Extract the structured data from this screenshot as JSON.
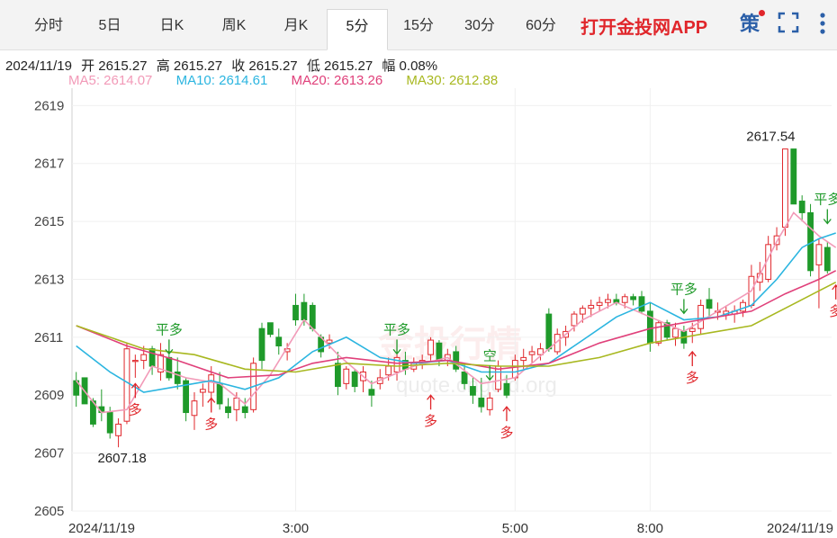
{
  "tabs": [
    {
      "label": "分时",
      "active": false
    },
    {
      "label": "5日",
      "active": false
    },
    {
      "label": "日K",
      "active": false
    },
    {
      "label": "周K",
      "active": false
    },
    {
      "label": "月K",
      "active": false
    },
    {
      "label": "5分",
      "active": true
    },
    {
      "label": "15分",
      "active": false
    },
    {
      "label": "30分",
      "active": false
    },
    {
      "label": "60分",
      "active": false
    }
  ],
  "app_link": "打开金投网APP",
  "tools": {
    "strategy_icon_label": "策",
    "fullscreen_icon": "fullscreen-icon",
    "more_icon": "more-icon"
  },
  "info": {
    "date": "2024/11/19",
    "open": "开 2615.27",
    "high": "高 2615.27",
    "close": "收 2615.27",
    "low": "低 2615.27",
    "range": "幅 0.08%"
  },
  "ma": [
    {
      "label": "MA5: 2614.07",
      "color": "#f29ab8"
    },
    {
      "label": "MA10: 2614.61",
      "color": "#2bb5e0"
    },
    {
      "label": "MA20: 2613.26",
      "color": "#e0407a"
    },
    {
      "label": "MA30: 2612.88",
      "color": "#a8b820"
    }
  ],
  "watermark": "金投行情",
  "watermark_url": "quote.cngold.org",
  "chart_data": {
    "type": "candlestick",
    "ylim": [
      2605,
      2619.6
    ],
    "y_ticks": [
      "2619",
      "2617",
      "2615",
      "2613",
      "2611",
      "2609",
      "2607",
      "2605"
    ],
    "x_ticks": [
      {
        "label": "2024/11/19",
        "index": 0
      },
      {
        "label": "3:00",
        "index": 26
      },
      {
        "label": "5:00",
        "index": 52
      },
      {
        "label": "8:00",
        "index": 68
      },
      {
        "label": "2024/11/19",
        "index": 82
      }
    ],
    "up_color": "#e0262b",
    "down_color": "#1f9a2a",
    "candles": [
      [
        2609.5,
        2609.8,
        2608.6,
        2609.0
      ],
      [
        2609.6,
        2609.6,
        2608.7,
        2608.7
      ],
      [
        2608.8,
        2608.9,
        2607.9,
        2608.0
      ],
      [
        2608.6,
        2609.2,
        2608.1,
        2608.4
      ],
      [
        2608.4,
        2608.6,
        2607.5,
        2607.7
      ],
      [
        2607.6,
        2608.2,
        2607.2,
        2608.0
      ],
      [
        2608.1,
        2610.8,
        2608.0,
        2610.6
      ],
      [
        2610.2,
        2610.4,
        2609.6,
        2610.2
      ],
      [
        2610.2,
        2610.7,
        2609.9,
        2610.4
      ],
      [
        2610.6,
        2610.7,
        2609.7,
        2610.0
      ],
      [
        2609.8,
        2610.8,
        2609.5,
        2610.4
      ],
      [
        2610.3,
        2610.4,
        2609.5,
        2609.6
      ],
      [
        2609.8,
        2610.3,
        2609.2,
        2609.4
      ],
      [
        2609.5,
        2609.6,
        2608.1,
        2608.4
      ],
      [
        2608.3,
        2609.1,
        2607.8,
        2608.8
      ],
      [
        2609.1,
        2609.4,
        2608.6,
        2609.2
      ],
      [
        2609.1,
        2610.0,
        2608.9,
        2609.7
      ],
      [
        2609.4,
        2609.8,
        2608.5,
        2608.7
      ],
      [
        2608.6,
        2608.9,
        2608.2,
        2608.4
      ],
      [
        2608.5,
        2609.1,
        2608.1,
        2608.9
      ],
      [
        2608.6,
        2608.9,
        2608.2,
        2608.4
      ],
      [
        2608.5,
        2610.3,
        2608.4,
        2610.1
      ],
      [
        2611.3,
        2611.5,
        2609.9,
        2610.2
      ],
      [
        2611.5,
        2611.5,
        2611.0,
        2611.1
      ],
      [
        2611.0,
        2611.3,
        2610.4,
        2610.7
      ],
      [
        2610.5,
        2610.8,
        2610.2,
        2610.6
      ],
      [
        2612.1,
        2612.5,
        2611.4,
        2611.6
      ],
      [
        2612.2,
        2612.5,
        2611.4,
        2611.6
      ],
      [
        2612.1,
        2612.2,
        2611.2,
        2611.3
      ],
      [
        2611.0,
        2611.1,
        2610.3,
        2610.5
      ],
      [
        2610.8,
        2611.1,
        2610.6,
        2610.9
      ],
      [
        2610.1,
        2610.5,
        2609.0,
        2609.3
      ],
      [
        2609.4,
        2610.0,
        2609.2,
        2609.9
      ],
      [
        2609.8,
        2609.9,
        2609.1,
        2609.3
      ],
      [
        2609.5,
        2610.0,
        2609.1,
        2609.8
      ],
      [
        2609.2,
        2609.5,
        2608.6,
        2609.0
      ],
      [
        2609.4,
        2609.9,
        2609.2,
        2609.6
      ],
      [
        2609.7,
        2610.3,
        2609.5,
        2610.0
      ],
      [
        2609.8,
        2610.4,
        2609.5,
        2610.3
      ],
      [
        2610.2,
        2610.5,
        2609.7,
        2609.9
      ],
      [
        2609.9,
        2610.3,
        2609.8,
        2610.1
      ],
      [
        2610.1,
        2610.4,
        2609.9,
        2610.2
      ],
      [
        2610.4,
        2611.0,
        2610.2,
        2610.9
      ],
      [
        2610.8,
        2610.9,
        2610.0,
        2610.2
      ],
      [
        2610.2,
        2610.6,
        2610.0,
        2610.4
      ],
      [
        2610.5,
        2610.7,
        2609.8,
        2609.9
      ],
      [
        2609.8,
        2610.1,
        2609.2,
        2609.4
      ],
      [
        2609.3,
        2609.6,
        2608.7,
        2609.0
      ],
      [
        2608.9,
        2609.6,
        2608.4,
        2608.6
      ],
      [
        2608.5,
        2609.1,
        2608.3,
        2608.9
      ],
      [
        2609.2,
        2610.2,
        2609.1,
        2610.0
      ],
      [
        2609.4,
        2609.7,
        2608.9,
        2609.0
      ],
      [
        2609.6,
        2610.4,
        2609.5,
        2610.2
      ],
      [
        2610.2,
        2610.6,
        2609.9,
        2610.3
      ],
      [
        2610.4,
        2610.7,
        2610.1,
        2610.5
      ],
      [
        2610.4,
        2610.8,
        2610.2,
        2610.6
      ],
      [
        2611.8,
        2612.0,
        2610.5,
        2610.6
      ],
      [
        2610.5,
        2611.3,
        2610.4,
        2611.1
      ],
      [
        2611.0,
        2611.4,
        2610.7,
        2611.2
      ],
      [
        2611.4,
        2611.9,
        2611.2,
        2611.8
      ],
      [
        2611.8,
        2612.1,
        2611.5,
        2612.0
      ],
      [
        2612.0,
        2612.3,
        2611.7,
        2612.1
      ],
      [
        2612.1,
        2612.4,
        2611.9,
        2612.2
      ],
      [
        2612.2,
        2612.5,
        2612.0,
        2612.3
      ],
      [
        2612.3,
        2612.5,
        2612.1,
        2612.2
      ],
      [
        2612.2,
        2612.5,
        2612.0,
        2612.4
      ],
      [
        2612.4,
        2612.5,
        2612.1,
        2612.3
      ],
      [
        2612.4,
        2612.6,
        2611.8,
        2611.9
      ],
      [
        2611.9,
        2612.2,
        2610.5,
        2610.8
      ],
      [
        2610.8,
        2611.6,
        2610.7,
        2611.5
      ],
      [
        2611.5,
        2611.6,
        2610.9,
        2611.0
      ],
      [
        2611.0,
        2611.5,
        2610.7,
        2611.3
      ],
      [
        2611.2,
        2611.4,
        2610.6,
        2610.8
      ],
      [
        2611.2,
        2611.5,
        2610.8,
        2611.3
      ],
      [
        2611.3,
        2612.3,
        2611.1,
        2612.1
      ],
      [
        2612.3,
        2612.7,
        2611.7,
        2612.0
      ],
      [
        2611.9,
        2612.2,
        2611.6,
        2611.9
      ],
      [
        2611.8,
        2612.1,
        2611.6,
        2611.9
      ],
      [
        2611.8,
        2612.1,
        2611.5,
        2611.9
      ],
      [
        2611.9,
        2612.3,
        2611.7,
        2612.2
      ],
      [
        2612.1,
        2613.5,
        2612.0,
        2613.1
      ],
      [
        2612.9,
        2613.6,
        2612.6,
        2613.2
      ],
      [
        2613.0,
        2614.5,
        2612.9,
        2614.2
      ],
      [
        2614.2,
        2614.8,
        2614.0,
        2614.5
      ],
      [
        2614.8,
        2617.5,
        2614.5,
        2617.5
      ],
      [
        2617.5,
        2617.5,
        2615.7,
        2615.6
      ],
      [
        2615.7,
        2615.9,
        2615.0,
        2615.3
      ],
      [
        2615.3,
        2615.6,
        2613.1,
        2613.3
      ],
      [
        2613.5,
        2614.4,
        2612.0,
        2614.2
      ],
      [
        2614.1,
        2614.3,
        2613.2,
        2613.3
      ]
    ],
    "ma_series": [
      {
        "name": "MA5",
        "color": "#f29ab8",
        "points": [
          [
            0,
            2609.5
          ],
          [
            3,
            2608.4
          ],
          [
            6,
            2608.5
          ],
          [
            9,
            2610.0
          ],
          [
            13,
            2609.6
          ],
          [
            17,
            2609.4
          ],
          [
            20,
            2608.7
          ],
          [
            23,
            2609.7
          ],
          [
            27,
            2611.6
          ],
          [
            31,
            2610.4
          ],
          [
            35,
            2609.4
          ],
          [
            40,
            2610.0
          ],
          [
            44,
            2610.3
          ],
          [
            48,
            2609.4
          ],
          [
            52,
            2609.6
          ],
          [
            56,
            2610.6
          ],
          [
            60,
            2611.6
          ],
          [
            64,
            2612.2
          ],
          [
            68,
            2611.7
          ],
          [
            72,
            2611.2
          ],
          [
            76,
            2611.9
          ],
          [
            80,
            2612.6
          ],
          [
            83,
            2614.3
          ],
          [
            85,
            2615.3
          ],
          [
            88,
            2614.5
          ],
          [
            90,
            2614.1
          ]
        ]
      },
      {
        "name": "MA10",
        "color": "#2bb5e0",
        "points": [
          [
            0,
            2610.7
          ],
          [
            4,
            2609.8
          ],
          [
            8,
            2609.1
          ],
          [
            12,
            2609.3
          ],
          [
            16,
            2609.5
          ],
          [
            20,
            2609.2
          ],
          [
            24,
            2609.6
          ],
          [
            28,
            2610.5
          ],
          [
            32,
            2611.0
          ],
          [
            36,
            2610.3
          ],
          [
            40,
            2610.1
          ],
          [
            44,
            2610.2
          ],
          [
            48,
            2609.8
          ],
          [
            52,
            2609.8
          ],
          [
            56,
            2610.1
          ],
          [
            60,
            2610.9
          ],
          [
            64,
            2611.7
          ],
          [
            68,
            2612.2
          ],
          [
            72,
            2611.6
          ],
          [
            76,
            2611.7
          ],
          [
            80,
            2612.1
          ],
          [
            83,
            2613.0
          ],
          [
            86,
            2614.1
          ],
          [
            88,
            2614.4
          ],
          [
            90,
            2614.6
          ]
        ]
      },
      {
        "name": "MA20",
        "color": "#e0407a",
        "points": [
          [
            0,
            2611.4
          ],
          [
            6,
            2610.7
          ],
          [
            12,
            2610.2
          ],
          [
            18,
            2609.6
          ],
          [
            24,
            2609.7
          ],
          [
            28,
            2610.1
          ],
          [
            32,
            2610.3
          ],
          [
            38,
            2610.1
          ],
          [
            44,
            2610.2
          ],
          [
            50,
            2609.9
          ],
          [
            56,
            2610.1
          ],
          [
            62,
            2610.8
          ],
          [
            68,
            2611.3
          ],
          [
            74,
            2611.6
          ],
          [
            80,
            2611.9
          ],
          [
            84,
            2612.5
          ],
          [
            88,
            2613.0
          ],
          [
            90,
            2613.3
          ]
        ]
      },
      {
        "name": "MA30",
        "color": "#a8b820",
        "points": [
          [
            0,
            2611.4
          ],
          [
            8,
            2610.6
          ],
          [
            14,
            2610.4
          ],
          [
            20,
            2609.9
          ],
          [
            26,
            2609.8
          ],
          [
            32,
            2610.1
          ],
          [
            38,
            2610.0
          ],
          [
            44,
            2610.1
          ],
          [
            50,
            2610.0
          ],
          [
            56,
            2610.0
          ],
          [
            62,
            2610.3
          ],
          [
            68,
            2610.8
          ],
          [
            74,
            2611.1
          ],
          [
            80,
            2611.4
          ],
          [
            84,
            2612.0
          ],
          [
            88,
            2612.6
          ],
          [
            90,
            2612.9
          ]
        ]
      }
    ],
    "annotations": [
      {
        "text": "2607.18",
        "index": 5,
        "value": 2607.18,
        "type": "low_label"
      },
      {
        "text": "2617.54",
        "index": 84,
        "value": 2617.54,
        "type": "high_label"
      },
      {
        "text": "平多",
        "index": 11,
        "value": 2610.3,
        "type": "down_arrow",
        "color": "#1f9a2a"
      },
      {
        "text": "多",
        "index": 7,
        "value": 2609.4,
        "type": "up_arrow",
        "color": "#e0262b"
      },
      {
        "text": "多",
        "index": 16,
        "value": 2608.9,
        "type": "up_arrow",
        "color": "#e0262b"
      },
      {
        "text": "平多",
        "index": 38,
        "value": 2610.3,
        "type": "down_arrow",
        "color": "#1f9a2a"
      },
      {
        "text": "多",
        "index": 42,
        "value": 2609.0,
        "type": "up_arrow",
        "color": "#e0262b"
      },
      {
        "text": "空",
        "index": 49,
        "value": 2609.4,
        "type": "down_arrow",
        "color": "#1f9a2a"
      },
      {
        "text": "多",
        "index": 51,
        "value": 2608.6,
        "type": "up_arrow",
        "color": "#e0262b"
      },
      {
        "text": "平多",
        "index": 72,
        "value": 2611.7,
        "type": "down_arrow",
        "color": "#1f9a2a"
      },
      {
        "text": "多",
        "index": 73,
        "value": 2610.5,
        "type": "up_arrow",
        "color": "#e0262b"
      },
      {
        "text": "平多",
        "index": 89,
        "value": 2614.8,
        "type": "down_arrow",
        "color": "#1f9a2a"
      },
      {
        "text": "多",
        "index": 90,
        "value": 2612.8,
        "type": "up_arrow",
        "color": "#e0262b"
      }
    ]
  }
}
